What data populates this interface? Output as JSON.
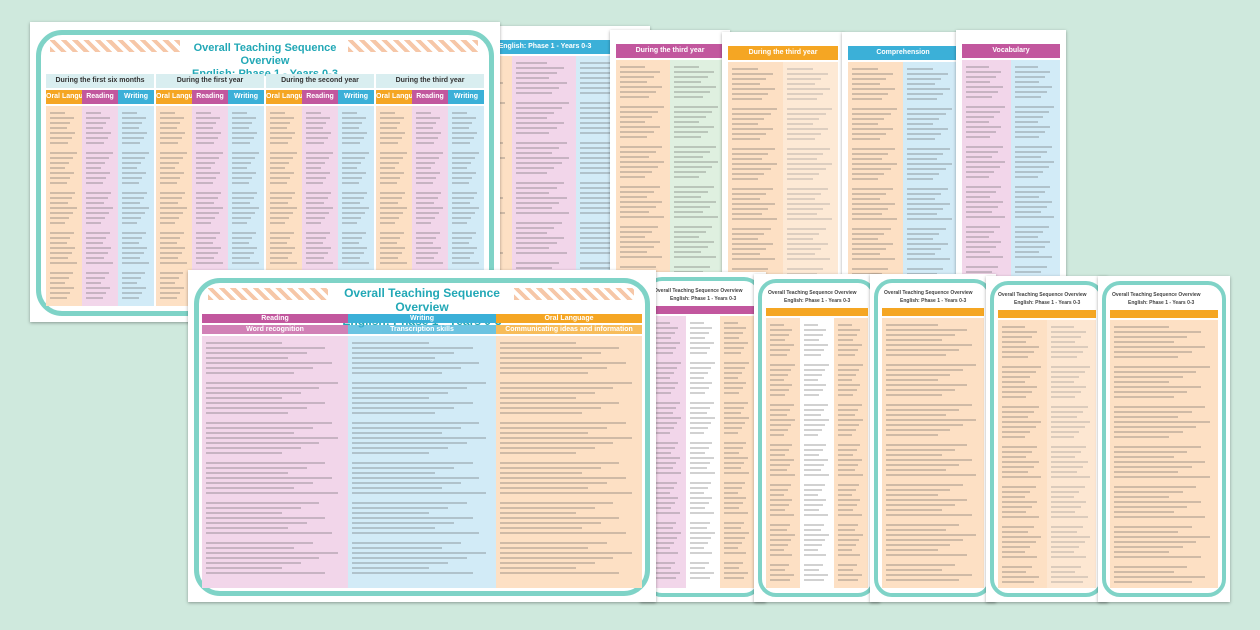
{
  "main_title": {
    "line1": "Overall Teaching Sequence Overview",
    "line2": "English: Phase 1 - Years 0-3"
  },
  "time_periods": [
    "During the first six months",
    "During the first year",
    "During the second year",
    "During the third year"
  ],
  "strands": [
    "Oral Language",
    "Reading",
    "Writing"
  ],
  "front_subheads": [
    "Communicating ideas and information",
    "Word recognition",
    "Transcription skills"
  ],
  "small_sheet_title": "Overall Teaching Sequence Overview",
  "small_sheet_subtitle": "English: Phase 1 - Years 0-3",
  "strip_heads": [
    "English: Phase 1 - Years 0-3",
    "During the third year",
    "Comprehension",
    "Vocabulary"
  ],
  "colors": {
    "background": "#cfe9dd",
    "frame": "#7fd3c7",
    "title": "#22a8b6",
    "oral_language": "#f5a623",
    "reading": "#c2579e",
    "writing": "#3bb0d8",
    "peach": "#fde0c4",
    "pink": "#f2d6ea",
    "blue": "#d2ebf7",
    "green": "#dff0e0"
  }
}
